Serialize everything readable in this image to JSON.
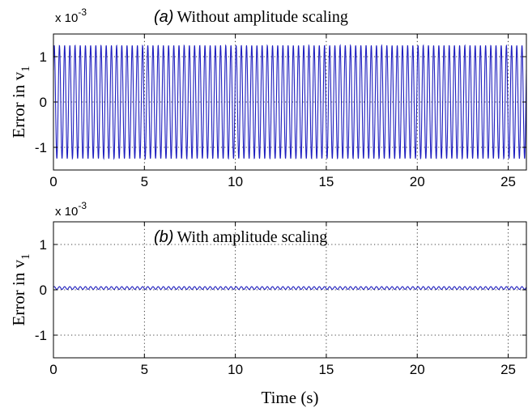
{
  "colors": {
    "series": "#1f1fbf",
    "axis": "#000000",
    "grid": "#000000"
  },
  "chart_data": [
    {
      "type": "line",
      "panel_tag": "(a)",
      "title": "Without amplitude scaling",
      "xlabel": "",
      "ylabel": "Error in v",
      "ylabel_sub": "1",
      "exponent_label": "x 10",
      "exponent_power": "-3",
      "xlim": [
        0,
        26
      ],
      "ylim": [
        -1.5,
        1.5
      ],
      "xticks": [
        0,
        5,
        10,
        15,
        20,
        25
      ],
      "yticks": [
        -1,
        0,
        1
      ],
      "xtick_labels": [
        "0",
        "5",
        "10",
        "15",
        "20",
        "25"
      ],
      "ytick_labels": [
        "-1",
        "0",
        "1"
      ],
      "grid": true,
      "series": [
        {
          "waveform": "sinusoid",
          "amplitude": 1.25,
          "frequency_hz": 3.5,
          "offset": 0
        }
      ]
    },
    {
      "type": "line",
      "panel_tag": "(b)",
      "title": "With amplitude scaling",
      "xlabel": "Time (s)",
      "ylabel": "Error in v",
      "ylabel_sub": "1",
      "exponent_label": "x 10",
      "exponent_power": "-3",
      "xlim": [
        0,
        26
      ],
      "ylim": [
        -1.5,
        1.5
      ],
      "xticks": [
        0,
        5,
        10,
        15,
        20,
        25
      ],
      "yticks": [
        -1,
        0,
        1
      ],
      "xtick_labels": [
        "0",
        "5",
        "10",
        "15",
        "20",
        "25"
      ],
      "ytick_labels": [
        "-1",
        "0",
        "1"
      ],
      "grid": true,
      "series": [
        {
          "waveform": "sinusoid",
          "amplitude": 0.03,
          "frequency_hz": 3.5,
          "offset": 0.04
        }
      ]
    }
  ]
}
